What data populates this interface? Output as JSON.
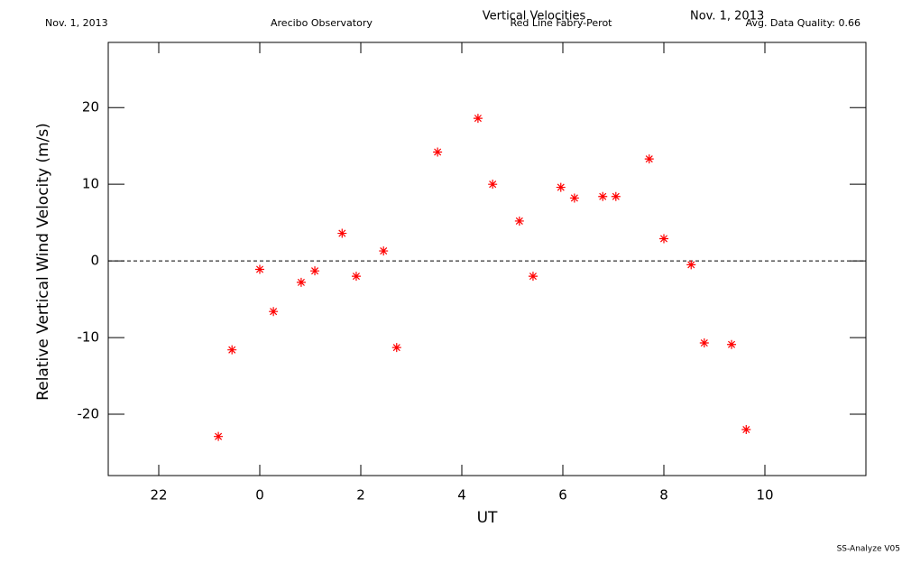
{
  "chart_data": {
    "type": "scatter",
    "title": "Vertical Velocities",
    "subtitle": "Red Line Fabry-Perot",
    "date_left": "Nov. 1, 2013",
    "observatory": "Arecibo Observatory",
    "date_right": "Nov. 1, 2013",
    "quality": "Avg. Data Quality: 0.66",
    "footer": "SS-Analyze V05",
    "x_label": "UT",
    "y_label": "Relative Vertical Wind Velocity (m/s)",
    "color": "#ff0000",
    "reference_line": 0,
    "xlim": [
      -3,
      12
    ],
    "xticks": [
      {
        "value": -2,
        "label": "22"
      },
      0,
      2,
      4,
      6,
      8,
      10
    ],
    "ylim": [
      -28,
      28.5
    ],
    "yticks": [
      -20,
      -10,
      0,
      10,
      20
    ],
    "x": [
      -0.82,
      -0.55,
      0.0,
      0.27,
      0.82,
      1.09,
      1.63,
      1.91,
      2.45,
      2.71,
      3.52,
      4.32,
      4.61,
      5.14,
      5.41,
      5.96,
      6.23,
      6.79,
      7.05,
      7.71,
      8.0,
      8.54,
      8.8,
      9.34,
      9.63
    ],
    "values": [
      -22.9,
      -11.6,
      -1.1,
      -6.6,
      -2.8,
      -1.3,
      3.6,
      -2.0,
      1.3,
      -11.3,
      14.2,
      18.6,
      10.0,
      5.2,
      -2.0,
      9.6,
      8.2,
      8.4,
      8.4,
      13.3,
      2.9,
      -0.5,
      -10.7,
      -10.9,
      -22.0
    ]
  }
}
